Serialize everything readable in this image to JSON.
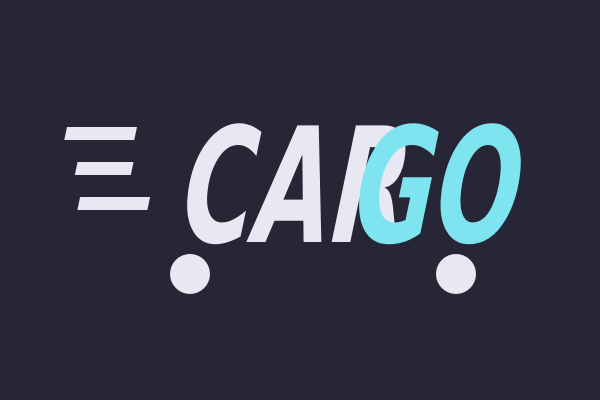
{
  "logo": {
    "text_part1": "CAR",
    "text_part2": "GO",
    "colors": {
      "background": "#262637",
      "primary": "#e8e8f2",
      "accent": "#7de4f0"
    },
    "icon_names": [
      "speed-lines-icon",
      "wheel-icon"
    ]
  }
}
